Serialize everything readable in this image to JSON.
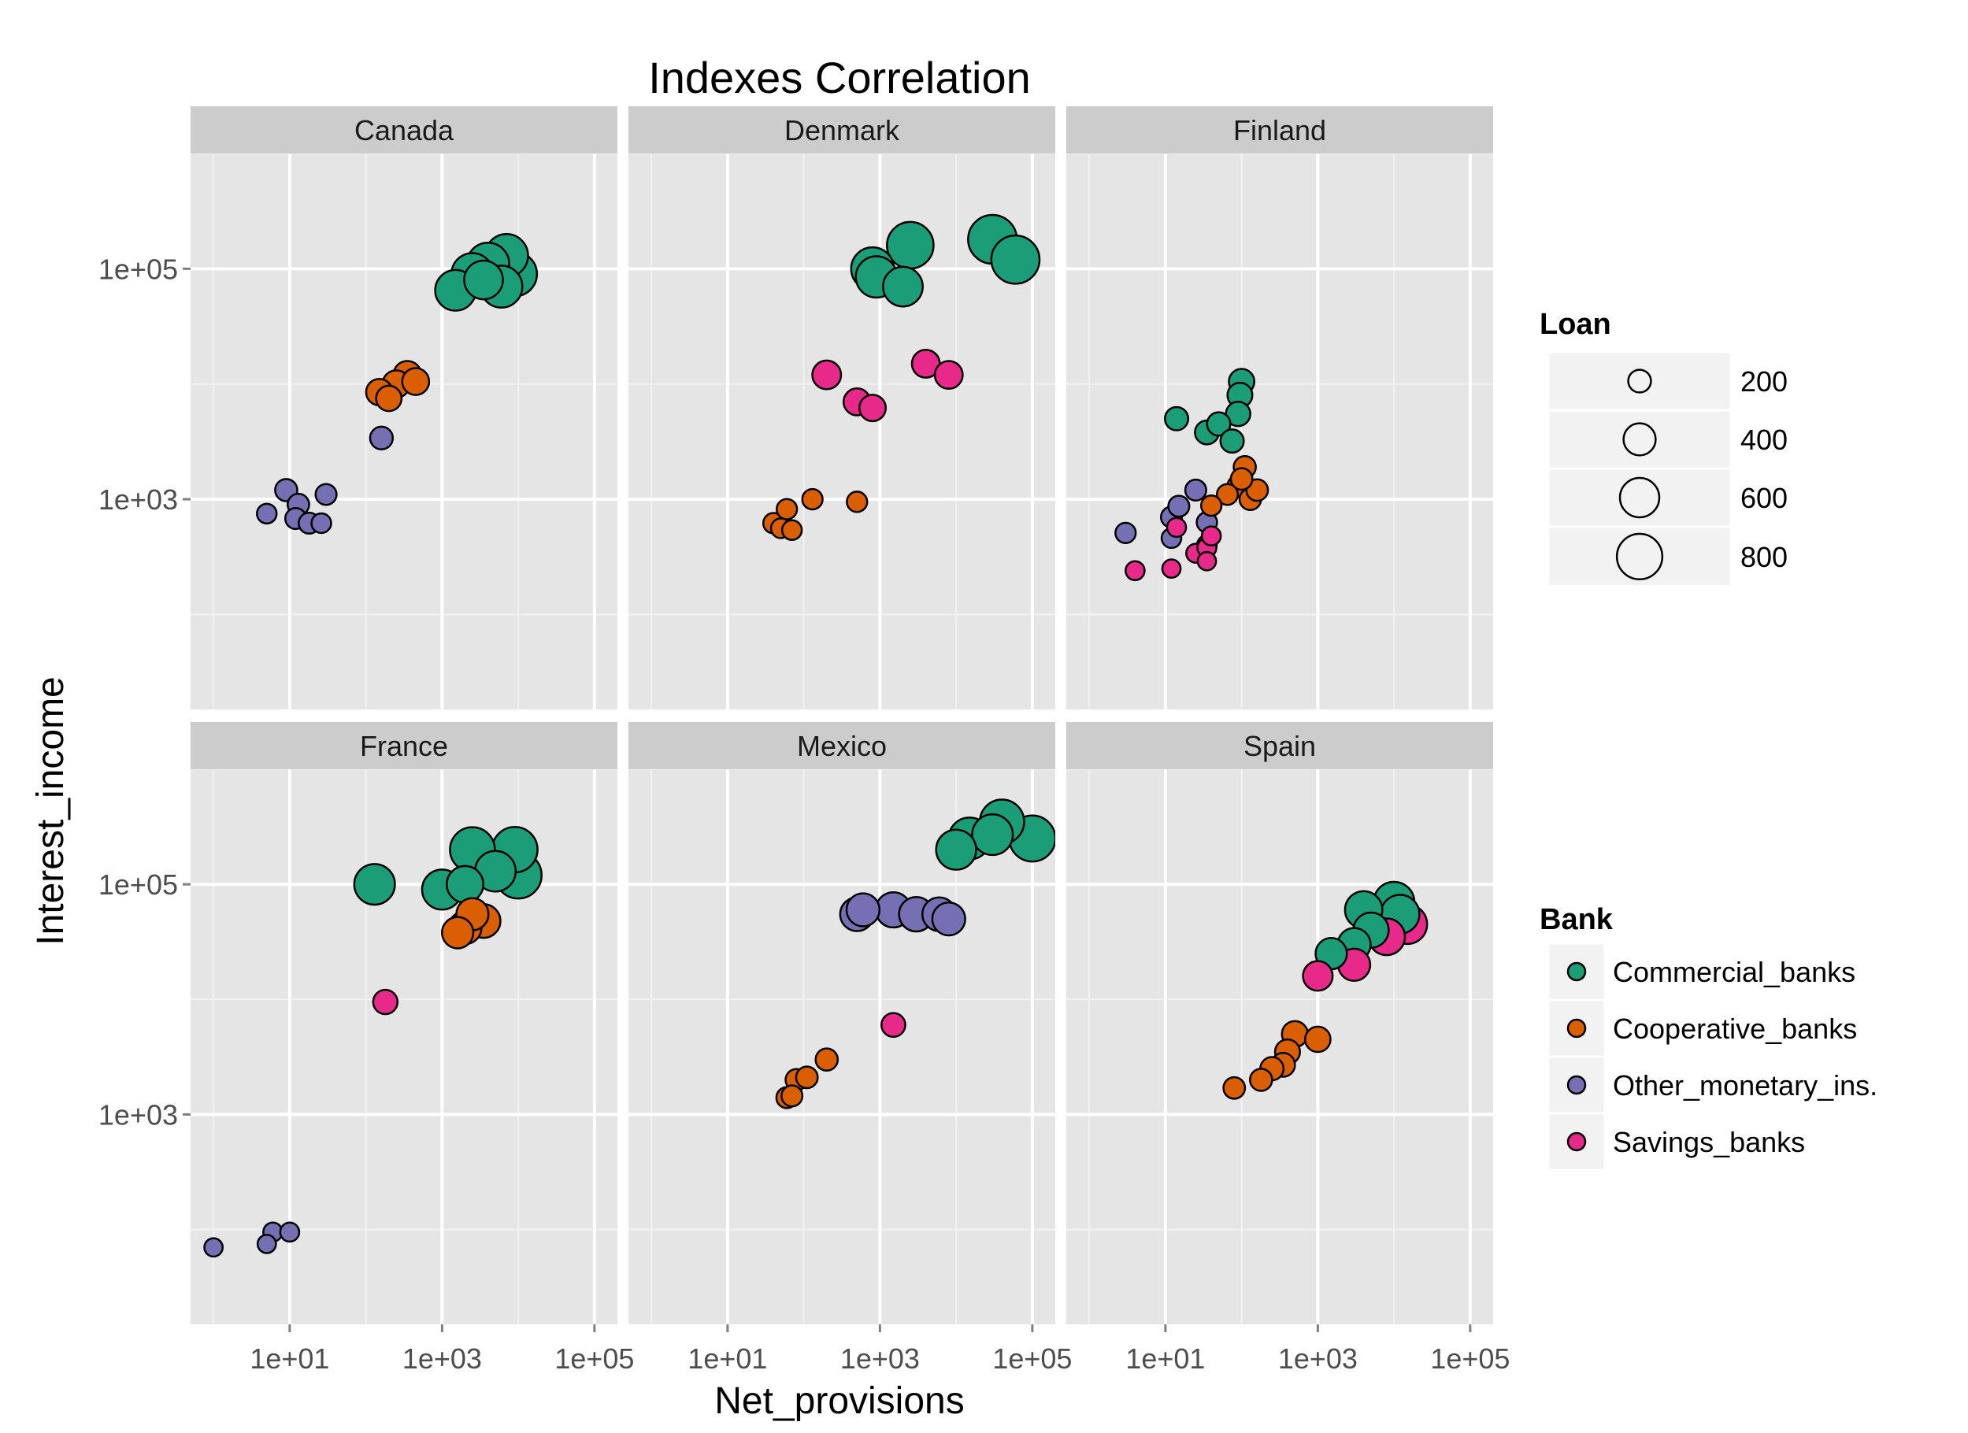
{
  "chart_data": {
    "type": "scatter",
    "title": "Indexes Correlation",
    "xlabel": "Net_provisions",
    "ylabel": "Interest_income",
    "x_scale": "log10",
    "y_scale": "log10",
    "xlim": [
      0.5,
      200000
    ],
    "ylim": [
      15,
      1000000
    ],
    "x_ticks": [
      10,
      1000,
      100000
    ],
    "x_tick_labels": [
      "1e+01",
      "1e+03",
      "1e+05"
    ],
    "y_ticks": [
      1000,
      100000
    ],
    "y_tick_labels": [
      "1e+03",
      "1e+05"
    ],
    "grid": true,
    "panel_background": "#e5e5e5",
    "strip_background": "#cccccc",
    "legend_position": "right",
    "size_legend": {
      "title": "Loan",
      "values": [
        200,
        400,
        600,
        800
      ],
      "labels": [
        "200",
        "400",
        "600",
        "800"
      ]
    },
    "color_legend": {
      "title": "Bank",
      "entries": [
        {
          "key": "Commercial_banks",
          "label": "Commercial_banks",
          "color": "#1b9e77"
        },
        {
          "key": "Cooperative_banks",
          "label": "Cooperative_banks",
          "color": "#d95f02"
        },
        {
          "key": "Other_monetary_ins.",
          "label": "Other_monetary_ins.",
          "color": "#7570b3"
        },
        {
          "key": "Savings_banks",
          "label": "Savings_banks",
          "color": "#e7298a"
        }
      ]
    },
    "panels": [
      {
        "country": "Canada",
        "points": [
          {
            "bank": "Other_monetary_ins.",
            "x": 5,
            "y": 750,
            "loan": 150
          },
          {
            "bank": "Other_monetary_ins.",
            "x": 9,
            "y": 1200,
            "loan": 190
          },
          {
            "bank": "Other_monetary_ins.",
            "x": 13,
            "y": 900,
            "loan": 180
          },
          {
            "bank": "Other_monetary_ins.",
            "x": 12,
            "y": 680,
            "loan": 170
          },
          {
            "bank": "Other_monetary_ins.",
            "x": 18,
            "y": 620,
            "loan": 170
          },
          {
            "bank": "Other_monetary_ins.",
            "x": 26,
            "y": 620,
            "loan": 150
          },
          {
            "bank": "Other_monetary_ins.",
            "x": 30,
            "y": 1100,
            "loan": 170
          },
          {
            "bank": "Other_monetary_ins.",
            "x": 160,
            "y": 3400,
            "loan": 200
          },
          {
            "bank": "Cooperative_banks",
            "x": 150,
            "y": 8500,
            "loan": 270
          },
          {
            "bank": "Cooperative_banks",
            "x": 250,
            "y": 10000,
            "loan": 290
          },
          {
            "bank": "Cooperative_banks",
            "x": 350,
            "y": 12000,
            "loan": 300
          },
          {
            "bank": "Cooperative_banks",
            "x": 450,
            "y": 10500,
            "loan": 280
          },
          {
            "bank": "Cooperative_banks",
            "x": 200,
            "y": 7500,
            "loan": 250
          },
          {
            "bank": "Commercial_banks",
            "x": 1500,
            "y": 65000,
            "loan": 640
          },
          {
            "bank": "Commercial_banks",
            "x": 2500,
            "y": 90000,
            "loan": 680
          },
          {
            "bank": "Commercial_banks",
            "x": 4000,
            "y": 110000,
            "loan": 700
          },
          {
            "bank": "Commercial_banks",
            "x": 7000,
            "y": 130000,
            "loan": 720
          },
          {
            "bank": "Commercial_banks",
            "x": 9000,
            "y": 90000,
            "loan": 760
          },
          {
            "bank": "Commercial_banks",
            "x": 6000,
            "y": 70000,
            "loan": 680
          },
          {
            "bank": "Commercial_banks",
            "x": 3500,
            "y": 80000,
            "loan": 580
          }
        ]
      },
      {
        "country": "Denmark",
        "points": [
          {
            "bank": "Cooperative_banks",
            "x": 40,
            "y": 620,
            "loan": 160
          },
          {
            "bank": "Cooperative_banks",
            "x": 50,
            "y": 560,
            "loan": 150
          },
          {
            "bank": "Cooperative_banks",
            "x": 60,
            "y": 820,
            "loan": 160
          },
          {
            "bank": "Cooperative_banks",
            "x": 70,
            "y": 540,
            "loan": 150
          },
          {
            "bank": "Cooperative_banks",
            "x": 130,
            "y": 1000,
            "loan": 160
          },
          {
            "bank": "Cooperative_banks",
            "x": 500,
            "y": 950,
            "loan": 160
          },
          {
            "bank": "Savings_banks",
            "x": 200,
            "y": 12000,
            "loan": 320
          },
          {
            "bank": "Savings_banks",
            "x": 500,
            "y": 7000,
            "loan": 280
          },
          {
            "bank": "Savings_banks",
            "x": 800,
            "y": 6200,
            "loan": 270
          },
          {
            "bank": "Savings_banks",
            "x": 4000,
            "y": 15000,
            "loan": 300
          },
          {
            "bank": "Savings_banks",
            "x": 8000,
            "y": 12000,
            "loan": 300
          },
          {
            "bank": "Commercial_banks",
            "x": 800,
            "y": 100000,
            "loan": 710
          },
          {
            "bank": "Commercial_banks",
            "x": 2500,
            "y": 160000,
            "loan": 840
          },
          {
            "bank": "Commercial_banks",
            "x": 900,
            "y": 85000,
            "loan": 660
          },
          {
            "bank": "Commercial_banks",
            "x": 2000,
            "y": 70000,
            "loan": 610
          },
          {
            "bank": "Commercial_banks",
            "x": 30000,
            "y": 180000,
            "loan": 920
          },
          {
            "bank": "Commercial_banks",
            "x": 60000,
            "y": 120000,
            "loan": 900
          }
        ]
      },
      {
        "country": "Finland",
        "points": [
          {
            "bank": "Other_monetary_ins.",
            "x": 3,
            "y": 510,
            "loan": 160
          },
          {
            "bank": "Other_monetary_ins.",
            "x": 12,
            "y": 700,
            "loan": 170
          },
          {
            "bank": "Other_monetary_ins.",
            "x": 15,
            "y": 870,
            "loan": 170
          },
          {
            "bank": "Other_monetary_ins.",
            "x": 25,
            "y": 1200,
            "loan": 170
          },
          {
            "bank": "Other_monetary_ins.",
            "x": 35,
            "y": 630,
            "loan": 160
          },
          {
            "bank": "Other_monetary_ins.",
            "x": 12,
            "y": 460,
            "loan": 150
          },
          {
            "bank": "Other_monetary_ins.",
            "x": 35,
            "y": 400,
            "loan": 150
          },
          {
            "bank": "Savings_banks",
            "x": 4,
            "y": 240,
            "loan": 140
          },
          {
            "bank": "Savings_banks",
            "x": 12,
            "y": 250,
            "loan": 130
          },
          {
            "bank": "Savings_banks",
            "x": 14,
            "y": 570,
            "loan": 140
          },
          {
            "bank": "Savings_banks",
            "x": 25,
            "y": 340,
            "loan": 140
          },
          {
            "bank": "Savings_banks",
            "x": 35,
            "y": 380,
            "loan": 140
          },
          {
            "bank": "Savings_banks",
            "x": 35,
            "y": 290,
            "loan": 130
          },
          {
            "bank": "Savings_banks",
            "x": 40,
            "y": 480,
            "loan": 140
          },
          {
            "bank": "Cooperative_banks",
            "x": 40,
            "y": 880,
            "loan": 160
          },
          {
            "bank": "Cooperative_banks",
            "x": 65,
            "y": 1100,
            "loan": 170
          },
          {
            "bank": "Cooperative_banks",
            "x": 90,
            "y": 1300,
            "loan": 180
          },
          {
            "bank": "Cooperative_banks",
            "x": 110,
            "y": 1900,
            "loan": 190
          },
          {
            "bank": "Cooperative_banks",
            "x": 130,
            "y": 1000,
            "loan": 180
          },
          {
            "bank": "Cooperative_banks",
            "x": 160,
            "y": 1200,
            "loan": 180
          },
          {
            "bank": "Cooperative_banks",
            "x": 100,
            "y": 1500,
            "loan": 180
          },
          {
            "bank": "Commercial_banks",
            "x": 14,
            "y": 5000,
            "loan": 210
          },
          {
            "bank": "Commercial_banks",
            "x": 35,
            "y": 3800,
            "loan": 220
          },
          {
            "bank": "Commercial_banks",
            "x": 50,
            "y": 4500,
            "loan": 210
          },
          {
            "bank": "Commercial_banks",
            "x": 75,
            "y": 3200,
            "loan": 210
          },
          {
            "bank": "Commercial_banks",
            "x": 90,
            "y": 5500,
            "loan": 230
          },
          {
            "bank": "Commercial_banks",
            "x": 95,
            "y": 8000,
            "loan": 240
          },
          {
            "bank": "Commercial_banks",
            "x": 100,
            "y": 10500,
            "loan": 250
          }
        ]
      },
      {
        "country": "France",
        "points": [
          {
            "bank": "Other_monetary_ins.",
            "x": 1,
            "y": 70,
            "loan": 130
          },
          {
            "bank": "Other_monetary_ins.",
            "x": 5,
            "y": 75,
            "loan": 130
          },
          {
            "bank": "Other_monetary_ins.",
            "x": 6,
            "y": 95,
            "loan": 140
          },
          {
            "bank": "Other_monetary_ins.",
            "x": 10,
            "y": 95,
            "loan": 140
          },
          {
            "bank": "Savings_banks",
            "x": 180,
            "y": 9500,
            "loan": 230
          },
          {
            "bank": "Cooperative_banks",
            "x": 2000,
            "y": 42000,
            "loan": 420
          },
          {
            "bank": "Cooperative_banks",
            "x": 3500,
            "y": 48000,
            "loan": 440
          },
          {
            "bank": "Cooperative_banks",
            "x": 2500,
            "y": 55000,
            "loan": 400
          },
          {
            "bank": "Cooperative_banks",
            "x": 1600,
            "y": 38000,
            "loan": 380
          },
          {
            "bank": "Commercial_banks",
            "x": 130,
            "y": 100000,
            "loan": 640
          },
          {
            "bank": "Commercial_banks",
            "x": 1000,
            "y": 90000,
            "loan": 620
          },
          {
            "bank": "Commercial_banks",
            "x": 2500,
            "y": 200000,
            "loan": 780
          },
          {
            "bank": "Commercial_banks",
            "x": 9000,
            "y": 200000,
            "loan": 800
          },
          {
            "bank": "Commercial_banks",
            "x": 10000,
            "y": 120000,
            "loan": 840
          },
          {
            "bank": "Commercial_banks",
            "x": 5000,
            "y": 130000,
            "loan": 640
          },
          {
            "bank": "Commercial_banks",
            "x": 2000,
            "y": 100000,
            "loan": 520
          }
        ]
      },
      {
        "country": "Mexico",
        "points": [
          {
            "bank": "Cooperative_banks",
            "x": 60,
            "y": 1400,
            "loan": 170
          },
          {
            "bank": "Cooperative_banks",
            "x": 70,
            "y": 1450,
            "loan": 170
          },
          {
            "bank": "Cooperative_banks",
            "x": 80,
            "y": 2000,
            "loan": 180
          },
          {
            "bank": "Cooperative_banks",
            "x": 110,
            "y": 2100,
            "loan": 180
          },
          {
            "bank": "Cooperative_banks",
            "x": 200,
            "y": 3000,
            "loan": 190
          },
          {
            "bank": "Savings_banks",
            "x": 1500,
            "y": 6000,
            "loan": 220
          },
          {
            "bank": "Other_monetary_ins.",
            "x": 500,
            "y": 55000,
            "loan": 440
          },
          {
            "bank": "Other_monetary_ins.",
            "x": 1500,
            "y": 60000,
            "loan": 480
          },
          {
            "bank": "Other_monetary_ins.",
            "x": 3000,
            "y": 55000,
            "loan": 460
          },
          {
            "bank": "Other_monetary_ins.",
            "x": 6000,
            "y": 55000,
            "loan": 440
          },
          {
            "bank": "Other_monetary_ins.",
            "x": 8000,
            "y": 50000,
            "loan": 420
          },
          {
            "bank": "Other_monetary_ins.",
            "x": 600,
            "y": 60000,
            "loan": 420
          },
          {
            "bank": "Commercial_banks",
            "x": 10000,
            "y": 200000,
            "loan": 620
          },
          {
            "bank": "Commercial_banks",
            "x": 15000,
            "y": 250000,
            "loan": 680
          },
          {
            "bank": "Commercial_banks",
            "x": 40000,
            "y": 350000,
            "loan": 760
          },
          {
            "bank": "Commercial_banks",
            "x": 100000,
            "y": 250000,
            "loan": 820
          },
          {
            "bank": "Commercial_banks",
            "x": 30000,
            "y": 270000,
            "loan": 640
          }
        ]
      },
      {
        "country": "Spain",
        "points": [
          {
            "bank": "Cooperative_banks",
            "x": 80,
            "y": 1700,
            "loan": 180
          },
          {
            "bank": "Cooperative_banks",
            "x": 180,
            "y": 2000,
            "loan": 190
          },
          {
            "bank": "Cooperative_banks",
            "x": 250,
            "y": 2500,
            "loan": 210
          },
          {
            "bank": "Cooperative_banks",
            "x": 350,
            "y": 2700,
            "loan": 220
          },
          {
            "bank": "Cooperative_banks",
            "x": 400,
            "y": 3500,
            "loan": 240
          },
          {
            "bank": "Cooperative_banks",
            "x": 500,
            "y": 5000,
            "loan": 260
          },
          {
            "bank": "Cooperative_banks",
            "x": 1000,
            "y": 4500,
            "loan": 250
          },
          {
            "bank": "Savings_banks",
            "x": 1000,
            "y": 16000,
            "loan": 340
          },
          {
            "bank": "Savings_banks",
            "x": 3000,
            "y": 20000,
            "loan": 400
          },
          {
            "bank": "Savings_banks",
            "x": 8000,
            "y": 35000,
            "loan": 520
          },
          {
            "bank": "Savings_banks",
            "x": 15000,
            "y": 45000,
            "loan": 600
          },
          {
            "bank": "Commercial_banks",
            "x": 1500,
            "y": 25000,
            "loan": 380
          },
          {
            "bank": "Commercial_banks",
            "x": 3000,
            "y": 30000,
            "loan": 420
          },
          {
            "bank": "Commercial_banks",
            "x": 5000,
            "y": 40000,
            "loan": 480
          },
          {
            "bank": "Commercial_banks",
            "x": 4000,
            "y": 60000,
            "loan": 540
          },
          {
            "bank": "Commercial_banks",
            "x": 10000,
            "y": 70000,
            "loan": 640
          },
          {
            "bank": "Commercial_banks",
            "x": 12000,
            "y": 55000,
            "loan": 580
          }
        ]
      }
    ]
  }
}
